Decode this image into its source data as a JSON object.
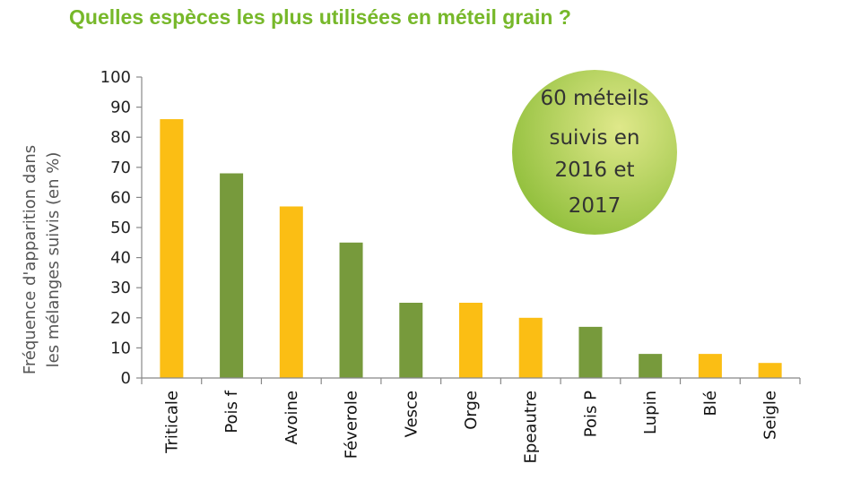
{
  "title": "Quelles espèces les plus utilisées en méteil grain ?",
  "bubble": {
    "lines": [
      "60 méteils",
      "suivis en",
      "2016 et",
      "2017"
    ]
  },
  "colors": {
    "title": "#77b82a",
    "yellow": "#fbbe14",
    "green": "#779a3c",
    "bubble_light": "#d6e27a",
    "bubble_dark": "#8fbe3a"
  },
  "chart_data": {
    "type": "bar",
    "categories": [
      "Triticale",
      "Pois f",
      "Avoine",
      "Féverole",
      "Vesce",
      "Orge",
      "Epeautre",
      "Pois P",
      "Lupin",
      "Blé",
      "Seigle"
    ],
    "values": [
      86,
      68,
      57,
      45,
      25,
      25,
      20,
      17,
      8,
      8,
      5
    ],
    "bar_colors": [
      "yellow",
      "green",
      "yellow",
      "green",
      "green",
      "yellow",
      "yellow",
      "green",
      "green",
      "yellow",
      "yellow"
    ],
    "ylabel_lines": [
      "Fréquence d'apparition dans",
      "les mélanges suivis (en %)"
    ],
    "ylim": [
      0,
      100
    ],
    "yticks": [
      "0",
      "10",
      "20",
      "30",
      "40",
      "50",
      "60",
      "70",
      "80",
      "90",
      "100"
    ],
    "grid": false
  }
}
